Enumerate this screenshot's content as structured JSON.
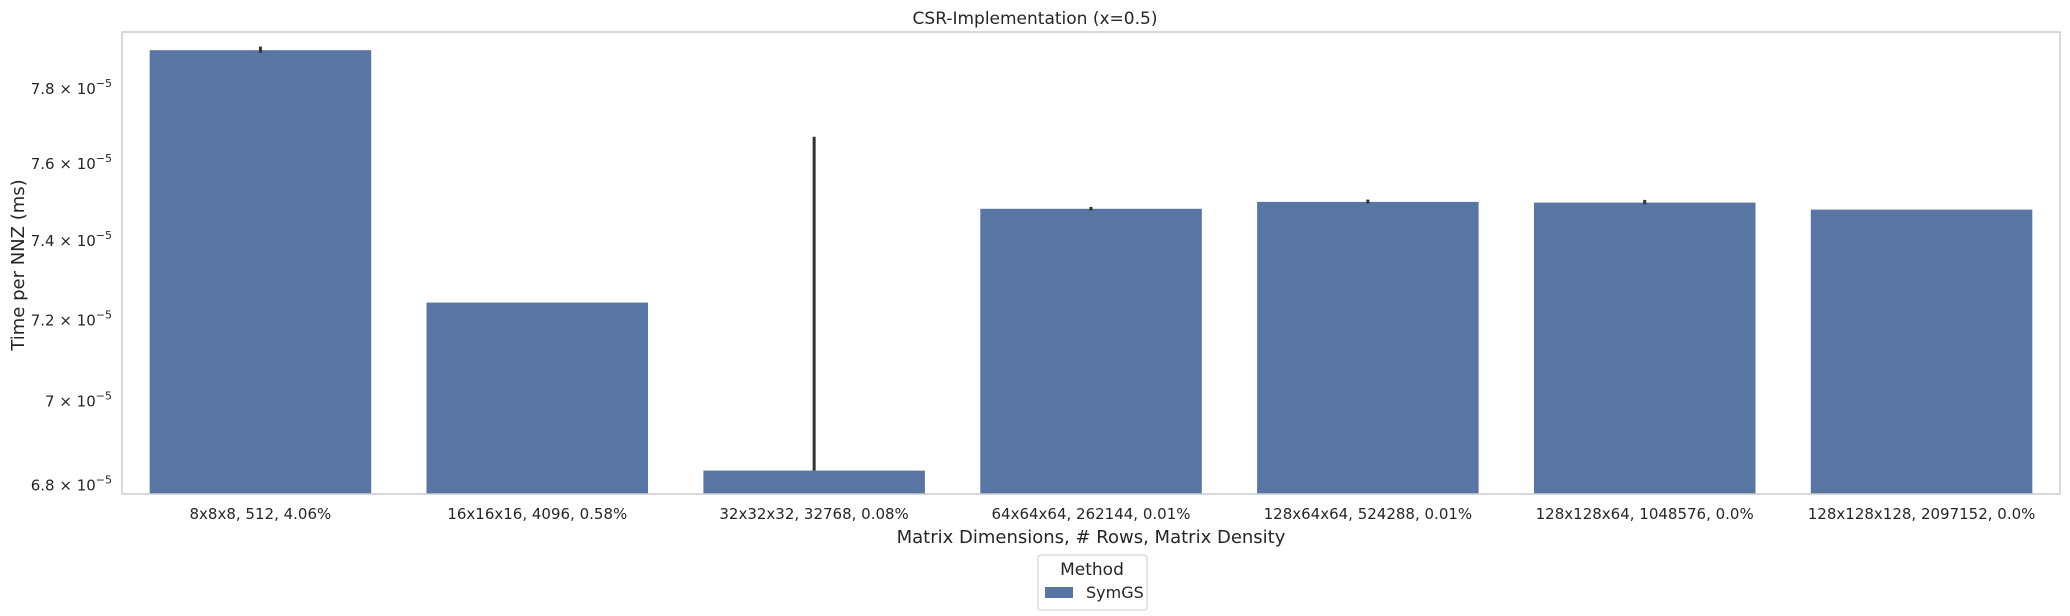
{
  "chart_data": {
    "type": "bar",
    "title": "CSR-Implementation (x=0.5)",
    "xlabel": "Matrix Dimensions, # Rows, Matrix Density",
    "ylabel": "Time per NNZ (ms)",
    "yscale": "log",
    "ylim": [
      6.78e-05,
      7.955e-05
    ],
    "yticks": [
      {
        "value": 6.8e-05,
        "mantissa": "6.8",
        "exponent": "−5"
      },
      {
        "value": 7e-05,
        "mantissa": "7",
        "exponent": "−5"
      },
      {
        "value": 7.2e-05,
        "mantissa": "7.2",
        "exponent": "−5"
      },
      {
        "value": 7.4e-05,
        "mantissa": "7.4",
        "exponent": "−5"
      },
      {
        "value": 7.6e-05,
        "mantissa": "7.6",
        "exponent": "−5"
      },
      {
        "value": 7.8e-05,
        "mantissa": "7.8",
        "exponent": "−5"
      }
    ],
    "categories": [
      "8x8x8, 512, 4.06%",
      "16x16x16, 4096, 0.58%",
      "32x32x32, 32768, 0.08%",
      "64x64x64, 262144, 0.01%",
      "128x64x64, 524288, 0.01%",
      "128x128x64, 1048576, 0.0%",
      "128x128x128, 2097152, 0.0%"
    ],
    "series": [
      {
        "name": "SymGS",
        "color": "#5975a4",
        "values": [
          7.905e-05,
          7.244e-05,
          6.835e-05,
          7.483e-05,
          7.501e-05,
          7.499e-05,
          7.481e-05
        ],
        "error_low": [
          7.898e-05,
          null,
          6.835e-05,
          7.479e-05,
          7.497e-05,
          7.495e-05,
          null
        ],
        "error_high": [
          7.915e-05,
          null,
          7.672e-05,
          7.488e-05,
          7.507e-05,
          7.506e-05,
          null
        ]
      }
    ],
    "grid": false,
    "legend": {
      "title": "Method",
      "placement": "below center, outside axes"
    }
  }
}
